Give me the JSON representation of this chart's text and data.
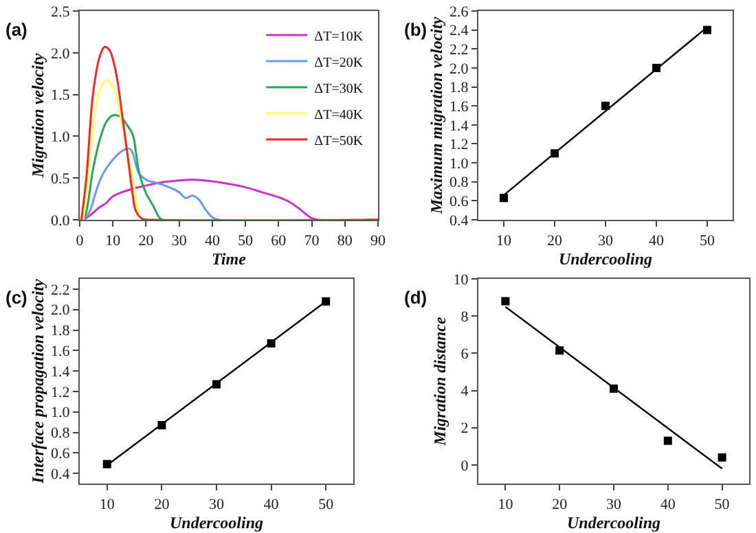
{
  "chart_data": [
    {
      "type": "line",
      "title": "(a)",
      "xlabel": "Time",
      "ylabel": "Migration velocity",
      "legend": "top right",
      "marker": "none",
      "line_style": "solid",
      "xlim": [
        0,
        90
      ],
      "xticks": [
        0,
        10,
        20,
        30,
        40,
        50,
        60,
        70,
        80,
        90
      ],
      "ylim": [
        0,
        2.5
      ],
      "yticks": [
        {
          "value": 0,
          "label": "0.0"
        },
        {
          "value": 0.5,
          "label": "0.5"
        },
        {
          "value": 1,
          "label": "1.0"
        },
        {
          "value": 1.5,
          "label": "1.5"
        },
        {
          "value": 2,
          "label": "2.0"
        },
        {
          "value": 2.5,
          "label": "2.5"
        }
      ],
      "series": [
        {
          "name": "ΔT=10K",
          "color": "#cc33cc",
          "x": [
            1,
            3,
            6,
            8,
            10,
            15,
            20,
            25,
            30,
            35,
            40,
            45,
            50,
            55,
            60,
            63,
            66,
            70,
            72,
            90
          ],
          "values": [
            0,
            0.05,
            0.15,
            0.2,
            0.28,
            0.36,
            0.41,
            0.45,
            0.47,
            0.48,
            0.46,
            0.43,
            0.39,
            0.33,
            0.27,
            0.22,
            0.14,
            0.02,
            0,
            0
          ]
        },
        {
          "name": "ΔT=20K",
          "color": "#6699ff",
          "x": [
            1,
            3,
            5,
            7,
            10,
            13,
            15,
            16,
            17,
            18,
            20,
            25,
            30,
            32,
            34,
            36,
            38,
            40,
            42,
            90
          ],
          "values": [
            0,
            0.1,
            0.35,
            0.55,
            0.72,
            0.83,
            0.85,
            0.8,
            0.65,
            0.55,
            0.48,
            0.42,
            0.33,
            0.26,
            0.29,
            0.24,
            0.12,
            0.03,
            0,
            0
          ]
        },
        {
          "name": "ΔT=30K",
          "color": "#22aa55",
          "x": [
            1,
            2,
            4,
            6,
            8,
            10,
            12,
            14,
            16,
            17,
            18,
            20,
            22,
            24,
            25,
            90
          ],
          "values": [
            0,
            0.1,
            0.6,
            0.95,
            1.17,
            1.25,
            1.24,
            1.15,
            1.02,
            0.8,
            0.55,
            0.32,
            0.18,
            0.03,
            0,
            0
          ]
        },
        {
          "name": "ΔT=40K",
          "color": "#ffff66",
          "x": [
            1,
            2,
            4,
            6,
            8,
            10,
            12,
            14,
            16,
            17,
            18,
            19,
            90
          ],
          "values": [
            0,
            0.3,
            1.1,
            1.55,
            1.67,
            1.6,
            1.3,
            0.9,
            0.5,
            0.25,
            0.05,
            0,
            0
          ]
        },
        {
          "name": "ΔT=50K",
          "color": "#ff2222",
          "x": [
            0.5,
            2,
            4,
            6,
            7.5,
            9,
            11,
            13,
            15,
            16,
            17,
            19,
            22,
            90
          ],
          "values": [
            0,
            0.5,
            1.5,
            1.95,
            2.07,
            2.03,
            1.75,
            1.2,
            0.6,
            0.3,
            0.1,
            0.01,
            0,
            0
          ]
        }
      ]
    },
    {
      "type": "scatter",
      "title": "(b)",
      "xlabel": "Undercooling",
      "ylabel": "Maximum migration velocity",
      "legend": false,
      "xlim": [
        5,
        55
      ],
      "xticks": [
        10,
        20,
        30,
        40,
        50
      ],
      "ylim": [
        0.4,
        2.6
      ],
      "yticks": [
        {
          "value": 0.4,
          "label": "0.4"
        },
        {
          "value": 0.6,
          "label": "0.6"
        },
        {
          "value": 0.8,
          "label": "0.8"
        },
        {
          "value": 1,
          "label": "1.0"
        },
        {
          "value": 1.2,
          "label": "1.2"
        },
        {
          "value": 1.4,
          "label": "1.4"
        },
        {
          "value": 1.6,
          "label": "1.6"
        },
        {
          "value": 1.8,
          "label": "1.8"
        },
        {
          "value": 2,
          "label": "2.0"
        },
        {
          "value": 2.2,
          "label": "2.2"
        },
        {
          "value": 2.4,
          "label": "2.4"
        },
        {
          "value": 2.6,
          "label": "2.6"
        }
      ],
      "series": [
        {
          "type": "scatter",
          "marker": "square",
          "color": "#000000",
          "x": [
            10,
            20,
            30,
            40,
            50
          ],
          "values": [
            0.63,
            1.1,
            1.6,
            2.0,
            2.4
          ]
        },
        {
          "type": "line",
          "marker": "none",
          "color": "#000000",
          "x": [
            10,
            50
          ],
          "values": [
            0.66,
            2.43
          ]
        }
      ]
    },
    {
      "type": "scatter",
      "title": "(c)",
      "xlabel": "Undercooling",
      "ylabel": "Interface propagation velocity",
      "legend": false,
      "xlim": [
        5,
        55
      ],
      "xticks": [
        10,
        20,
        30,
        40,
        50
      ],
      "ylim": [
        0.3,
        2.3
      ],
      "yticks": [
        {
          "value": 0.4,
          "label": "0.4"
        },
        {
          "value": 0.6,
          "label": "0.6"
        },
        {
          "value": 0.8,
          "label": "0.8"
        },
        {
          "value": 1,
          "label": "1.0"
        },
        {
          "value": 1.2,
          "label": "1.2"
        },
        {
          "value": 1.4,
          "label": "1.4"
        },
        {
          "value": 1.6,
          "label": "1.6"
        },
        {
          "value": 1.8,
          "label": "1.8"
        },
        {
          "value": 2,
          "label": "2.0"
        },
        {
          "value": 2.2,
          "label": "2.2"
        }
      ],
      "series": [
        {
          "type": "scatter",
          "marker": "square",
          "color": "#000000",
          "x": [
            10,
            20,
            30,
            40,
            50
          ],
          "values": [
            0.49,
            0.87,
            1.27,
            1.67,
            2.08
          ]
        },
        {
          "type": "line",
          "marker": "none",
          "color": "#000000",
          "x": [
            10,
            50
          ],
          "values": [
            0.48,
            2.08
          ]
        }
      ]
    },
    {
      "type": "scatter",
      "title": "(d)",
      "xlabel": "Undercooling",
      "ylabel": "Migration distance",
      "legend": false,
      "xlim": [
        5,
        55
      ],
      "xticks": [
        10,
        20,
        30,
        40,
        50
      ],
      "ylim": [
        -1,
        10
      ],
      "yticks": [
        0,
        2,
        4,
        6,
        8,
        10
      ],
      "series": [
        {
          "type": "scatter",
          "marker": "square",
          "color": "#000000",
          "x": [
            10,
            20,
            30,
            40,
            50
          ],
          "values": [
            8.8,
            6.15,
            4.1,
            1.3,
            0.4
          ]
        },
        {
          "type": "line",
          "marker": "none",
          "color": "#000000",
          "x": [
            10,
            50
          ],
          "values": [
            8.5,
            -0.2
          ]
        }
      ]
    }
  ]
}
